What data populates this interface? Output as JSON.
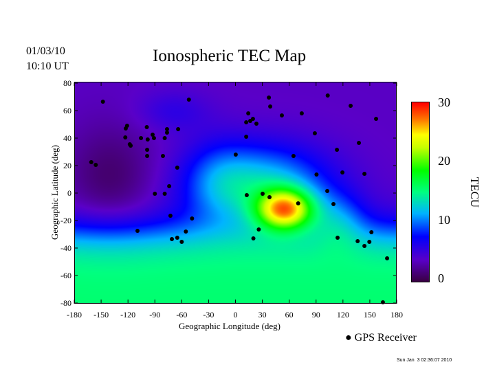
{
  "header": {
    "date": "01/03/10",
    "time": "10:10 UT",
    "title": "Ionospheric TEC Map"
  },
  "chart_data": {
    "type": "heatmap",
    "title": "Ionospheric TEC Map",
    "xlabel": "Geographic Longitude (deg)",
    "ylabel": "Geographic Latitude (deg)",
    "xlim": [
      -180,
      180
    ],
    "ylim": [
      -80,
      80
    ],
    "xticks": [
      -180,
      -150,
      -120,
      -90,
      -60,
      -30,
      0,
      30,
      60,
      90,
      120,
      150,
      180
    ],
    "yticks": [
      80,
      60,
      40,
      20,
      0,
      -20,
      -40,
      -60,
      -80
    ],
    "colorbar": {
      "label": "TECU",
      "range": [
        0,
        30
      ],
      "ticks": [
        30,
        20,
        10,
        0
      ],
      "colors": [
        "#3a0044",
        "#5a00c8",
        "#0000ff",
        "#00b4ff",
        "#00ff80",
        "#00ff00",
        "#c8ff00",
        "#ffff00",
        "#ff8000",
        "#ff0000"
      ]
    },
    "peak": {
      "lon": 60,
      "lat": -10,
      "value": 30
    },
    "legend": {
      "marker": "filled-circle",
      "label": "GPS Receiver",
      "placement": "bottom-right"
    },
    "receivers": [
      [
        -148,
        66.5
      ],
      [
        -121,
        49
      ],
      [
        -122.5,
        47
      ],
      [
        -99,
        48
      ],
      [
        -123,
        40.5
      ],
      [
        -118,
        35.5
      ],
      [
        -117,
        34.5
      ],
      [
        -105.5,
        40
      ],
      [
        -98,
        39
      ],
      [
        -92.5,
        42.5
      ],
      [
        -91,
        40
      ],
      [
        -79,
        40
      ],
      [
        -76.4,
        46.5
      ],
      [
        -76.4,
        44
      ],
      [
        -64,
        46.5
      ],
      [
        -52,
        68
      ],
      [
        -98.6,
        31.5
      ],
      [
        -98.6,
        27
      ],
      [
        -81,
        27
      ],
      [
        -65,
        18.5
      ],
      [
        -161,
        22.5
      ],
      [
        -156,
        20.5
      ],
      [
        -90,
        -0.5
      ],
      [
        -79,
        -0.5
      ],
      [
        -74,
        5
      ],
      [
        -72.6,
        -16.5
      ],
      [
        -71,
        -33.5
      ],
      [
        -65,
        -32.5
      ],
      [
        -60,
        -35.5
      ],
      [
        -55.4,
        -28
      ],
      [
        -48.5,
        -18.5
      ],
      [
        -109.4,
        -27.5
      ],
      [
        0.3,
        28
      ],
      [
        12,
        41
      ],
      [
        12,
        51.5
      ],
      [
        16.5,
        52.5
      ],
      [
        19.5,
        54
      ],
      [
        23.4,
        50.5
      ],
      [
        14.3,
        58
      ],
      [
        37.3,
        69.5
      ],
      [
        38.8,
        63
      ],
      [
        51.8,
        56.5
      ],
      [
        74,
        58
      ],
      [
        88.6,
        43.5
      ],
      [
        103,
        71
      ],
      [
        64.8,
        27
      ],
      [
        90.5,
        13.5
      ],
      [
        12.6,
        -1.5
      ],
      [
        30.3,
        -0.5
      ],
      [
        38,
        -3
      ],
      [
        70,
        -7.5
      ],
      [
        26,
        -26.5
      ],
      [
        20,
        -33
      ],
      [
        102.5,
        1.5
      ],
      [
        109.4,
        -8
      ],
      [
        113.3,
        31.5
      ],
      [
        119.4,
        15
      ],
      [
        128.6,
        63.5
      ],
      [
        137.8,
        36.5
      ],
      [
        157,
        54
      ],
      [
        144,
        14
      ],
      [
        114,
        -32.5
      ],
      [
        136.4,
        -35
      ],
      [
        144,
        -38.5
      ],
      [
        149.5,
        -35.5
      ],
      [
        151.8,
        -28.5
      ],
      [
        169.3,
        -47.5
      ],
      [
        164.6,
        -79.5
      ]
    ]
  },
  "footer": {
    "timestamp": "Sun Jan  3 02:36:07 2010"
  }
}
